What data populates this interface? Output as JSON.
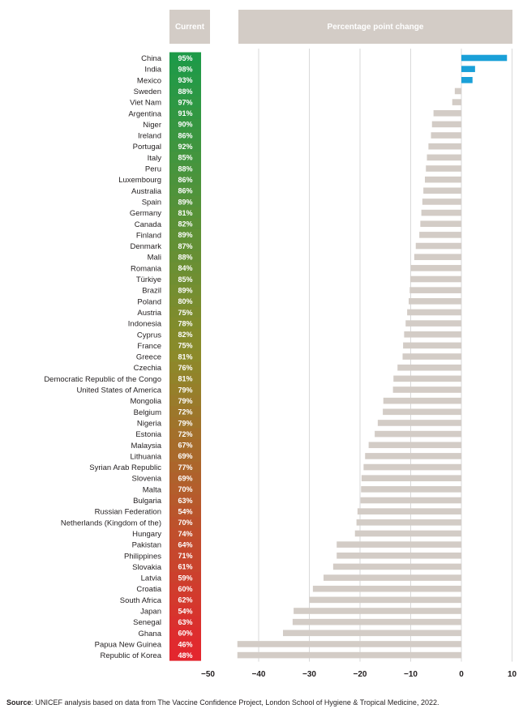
{
  "headers": {
    "current": "Current",
    "change": "Percentage point change"
  },
  "source": {
    "label": "Source",
    "text": ": UNICEF analysis based on data from The Vaccine Confidence Project, London School of Hygiene & Tropical Medicine, 2022."
  },
  "colors": {
    "positive": "#1aa0d8",
    "negative": "#d3ccc6",
    "grid": "#d0d0d0",
    "high": "#1e9a48",
    "mid": "#8c8a2a",
    "low": "#e3262e"
  },
  "chart_data": {
    "type": "bar",
    "orientation": "horizontal",
    "categories": [
      "China",
      "India",
      "Mexico",
      "Sweden",
      "Viet Nam",
      "Argentina",
      "Niger",
      "Ireland",
      "Portugal",
      "Italy",
      "Peru",
      "Luxembourg",
      "Australia",
      "Spain",
      "Germany",
      "Canada",
      "Finland",
      "Denmark",
      "Mali",
      "Romania",
      "Türkiye",
      "Brazil",
      "Poland",
      "Austria",
      "Indonesia",
      "Cyprus",
      "France",
      "Greece",
      "Czechia",
      "Democratic Republic of the Congo",
      "United States of America",
      "Mongolia",
      "Belgium",
      "Nigeria",
      "Estonia",
      "Malaysia",
      "Lithuania",
      "Syrian Arab Republic",
      "Slovenia",
      "Malta",
      "Bulgaria",
      "Russian Federation",
      "Netherlands (Kingdom of the)",
      "Hungary",
      "Pakistan",
      "Philippines",
      "Slovakia",
      "Latvia",
      "Croatia",
      "South Africa",
      "Japan",
      "Senegal",
      "Ghana",
      "Papua New Guinea",
      "Republic of Korea"
    ],
    "current": [
      "95%",
      "98%",
      "93%",
      "88%",
      "97%",
      "91%",
      "90%",
      "86%",
      "92%",
      "85%",
      "88%",
      "86%",
      "86%",
      "89%",
      "81%",
      "82%",
      "89%",
      "87%",
      "88%",
      "84%",
      "85%",
      "89%",
      "80%",
      "75%",
      "78%",
      "82%",
      "75%",
      "81%",
      "76%",
      "81%",
      "79%",
      "79%",
      "72%",
      "79%",
      "72%",
      "67%",
      "69%",
      "77%",
      "69%",
      "70%",
      "63%",
      "54%",
      "70%",
      "74%",
      "64%",
      "71%",
      "61%",
      "59%",
      "60%",
      "62%",
      "54%",
      "63%",
      "60%",
      "46%",
      "48%"
    ],
    "series": [
      {
        "values": [
          9.0,
          2.7,
          2.2,
          -1.3,
          -1.8,
          -5.5,
          -5.8,
          -6.0,
          -6.5,
          -6.8,
          -7.0,
          -7.2,
          -7.5,
          -7.7,
          -7.9,
          -8.1,
          -8.3,
          -9.0,
          -9.3,
          -10.0,
          -10.1,
          -10.2,
          -10.4,
          -10.7,
          -11.0,
          -11.3,
          -11.5,
          -11.6,
          -12.6,
          -13.4,
          -13.5,
          -15.4,
          -15.5,
          -16.5,
          -17.1,
          -18.3,
          -19.0,
          -19.3,
          -19.7,
          -19.8,
          -19.9,
          -20.5,
          -20.7,
          -21.0,
          -24.6,
          -24.6,
          -25.3,
          -27.2,
          -29.3,
          -30.0,
          -33.1,
          -33.3,
          -35.2,
          -44.2,
          -44.2
        ]
      }
    ],
    "xticks": [
      -50,
      -40,
      -30,
      -20,
      -10,
      0,
      10
    ],
    "xlim": [
      -50,
      10
    ],
    "title": "",
    "xlabel": "",
    "ylabel": "",
    "grid": true,
    "legend": "none"
  }
}
